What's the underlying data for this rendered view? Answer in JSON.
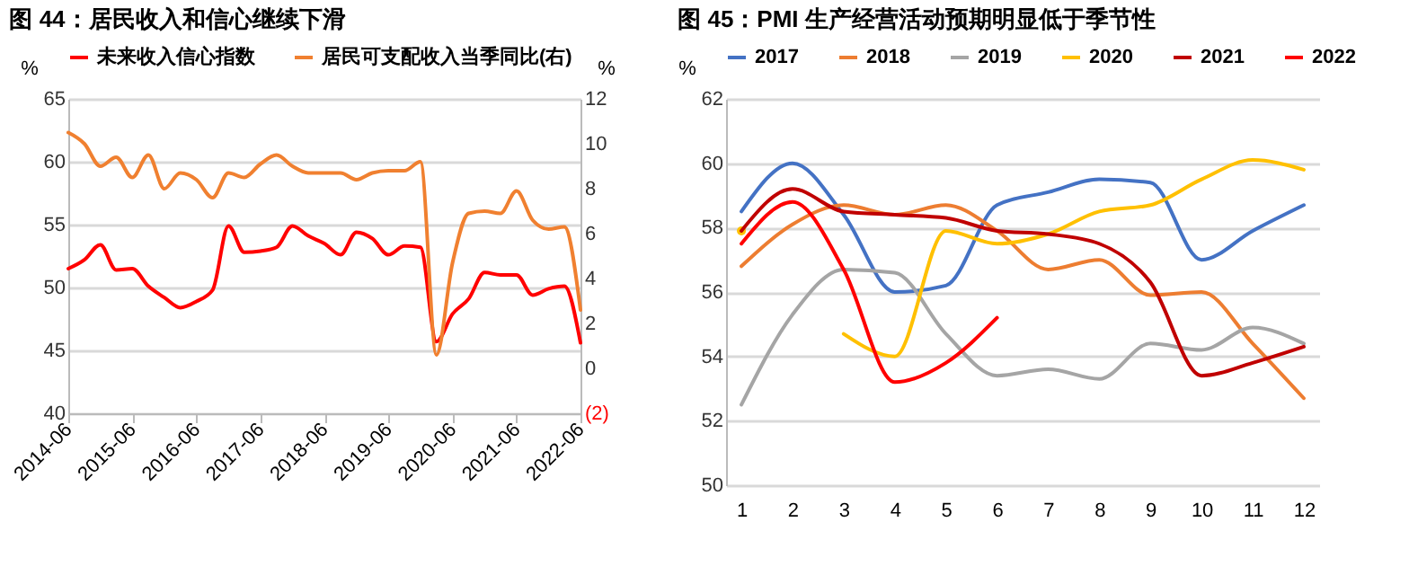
{
  "chart_data": [
    {
      "type": "line",
      "title": "图 44：居民收入和信心继续下滑",
      "ylabel": "%",
      "y2label": "%",
      "legend": "top",
      "grid": "y",
      "x": [
        "2014-06",
        "2014-09",
        "2014-12",
        "2015-03",
        "2015-06",
        "2015-09",
        "2015-12",
        "2016-03",
        "2016-06",
        "2016-09",
        "2016-12",
        "2017-03",
        "2017-06",
        "2017-09",
        "2017-12",
        "2018-03",
        "2018-06",
        "2018-09",
        "2018-12",
        "2019-03",
        "2019-06",
        "2019-09",
        "2019-12",
        "2020-03",
        "2020-06",
        "2020-09",
        "2020-12",
        "2021-03",
        "2021-06",
        "2021-09",
        "2021-12",
        "2022-03",
        "2022-06"
      ],
      "xlim": [
        "2014-06",
        "2022-06"
      ],
      "xticks": [
        "2014-06",
        "2015-06",
        "2016-06",
        "2017-06",
        "2018-06",
        "2019-06",
        "2020-06",
        "2021-06",
        "2022-06"
      ],
      "ylim": [
        40,
        65
      ],
      "yticks": [
        40,
        45,
        50,
        55,
        60,
        65
      ],
      "y2lim": [
        -2,
        12
      ],
      "y2ticks": [
        {
          "value": -2,
          "label": "(2)"
        },
        0,
        2,
        4,
        6,
        8,
        10,
        12
      ],
      "series": [
        {
          "name": "未来收入信心指数",
          "color": "#ff0000",
          "values": [
            51.5,
            52.2,
            53.4,
            51.4,
            51.5,
            50.1,
            49.2,
            48.4,
            48.9,
            49.8,
            54.9,
            52.8,
            52.9,
            53.2,
            54.9,
            54.1,
            53.5,
            52.6,
            54.4,
            53.9,
            52.6,
            53.3,
            53.2,
            45.7,
            47.9,
            49.1,
            51.2,
            51.0,
            51.0,
            49.4,
            49.9,
            50.1,
            45.6
          ]
        },
        {
          "name": "居民可支配收入当季同比(右)",
          "color": "#f08030",
          "axis": "y2",
          "values": [
            10.5,
            10.0,
            9.0,
            9.4,
            8.5,
            9.5,
            8.0,
            8.7,
            8.4,
            7.6,
            8.7,
            8.5,
            9.1,
            9.5,
            9.0,
            8.7,
            8.7,
            8.7,
            8.4,
            8.7,
            8.8,
            8.8,
            9.2,
            0.6,
            4.7,
            6.9,
            7.0,
            6.9,
            7.9,
            6.6,
            6.2,
            6.3,
            2.6
          ]
        }
      ]
    },
    {
      "type": "line",
      "title": "图 45：PMI 生产经营活动预期明显低于季节性",
      "ylabel": "%",
      "legend": "top",
      "grid": "y",
      "categories": [
        "1",
        "2",
        "3",
        "4",
        "5",
        "6",
        "7",
        "8",
        "9",
        "10",
        "11",
        "12"
      ],
      "ylim": [
        50,
        62
      ],
      "yticks": [
        50,
        52,
        54,
        56,
        58,
        60,
        62
      ],
      "series": [
        {
          "name": "2017",
          "color": "#4472c4",
          "values": [
            58.5,
            60.0,
            58.4,
            56.0,
            56.2,
            58.7,
            59.1,
            59.5,
            59.4,
            57.0,
            57.9,
            58.7
          ]
        },
        {
          "name": "2018",
          "color": "#ed7d31",
          "values": [
            56.8,
            58.1,
            58.7,
            58.4,
            58.7,
            57.9,
            56.7,
            57.0,
            55.9,
            56.0,
            54.4,
            52.7
          ]
        },
        {
          "name": "2019",
          "color": "#a5a5a5",
          "values": [
            52.5,
            55.3,
            56.7,
            56.6,
            54.7,
            53.4,
            53.6,
            53.3,
            54.4,
            54.2,
            54.9,
            54.4
          ]
        },
        {
          "name": "2020",
          "color": "#ffc000",
          "values": [
            57.9,
            null,
            54.7,
            54.0,
            57.9,
            57.5,
            57.8,
            58.5,
            58.7,
            59.5,
            60.1,
            59.8
          ]
        },
        {
          "name": "2021",
          "color": "#c00000",
          "values": [
            57.9,
            59.2,
            58.5,
            58.4,
            58.3,
            57.9,
            57.8,
            57.5,
            56.3,
            53.4,
            53.8,
            54.3
          ]
        },
        {
          "name": "2022",
          "color": "#ff0000",
          "values": [
            57.5,
            58.8,
            56.7,
            53.2,
            53.8,
            55.2,
            null,
            null,
            null,
            null,
            null,
            null
          ]
        }
      ]
    }
  ]
}
